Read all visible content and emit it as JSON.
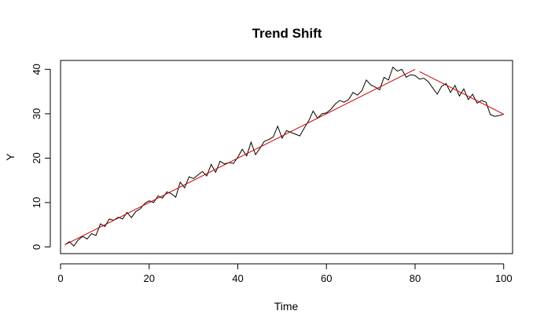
{
  "chart_data": {
    "type": "line",
    "title": "Trend Shift",
    "xlabel": "Time",
    "ylabel": "Y",
    "xlim": [
      0,
      102
    ],
    "ylim": [
      -1.5,
      42
    ],
    "xticks": [
      0,
      20,
      40,
      60,
      80,
      100
    ],
    "yticks": [
      0,
      10,
      20,
      30,
      40
    ],
    "grid": false,
    "series": [
      {
        "color": "#000000",
        "x": [
          1,
          2,
          3,
          4,
          5,
          6,
          7,
          8,
          9,
          10,
          11,
          12,
          13,
          14,
          15,
          16,
          17,
          18,
          19,
          20,
          21,
          22,
          23,
          24,
          25,
          26,
          27,
          28,
          29,
          30,
          31,
          32,
          33,
          34,
          35,
          36,
          37,
          38,
          39,
          40,
          41,
          42,
          43,
          44,
          45,
          46,
          47,
          48,
          49,
          50,
          51,
          52,
          53,
          54,
          55,
          56,
          57,
          58,
          59,
          60,
          61,
          62,
          63,
          64,
          65,
          66,
          67,
          68,
          69,
          70,
          71,
          72,
          73,
          74,
          75,
          76,
          77,
          78,
          79,
          80,
          81,
          82,
          83,
          84,
          85,
          86,
          87,
          88,
          89,
          90,
          91,
          92,
          93,
          94,
          95,
          96,
          97,
          98,
          99,
          100
        ],
        "values": [
          0.5,
          1.2,
          0.2,
          1.6,
          2.4,
          1.8,
          3.0,
          2.6,
          5.2,
          4.6,
          6.3,
          6.0,
          6.7,
          6.3,
          7.8,
          6.6,
          8.0,
          8.6,
          9.8,
          10.4,
          10.0,
          11.5,
          11.0,
          12.4,
          12.0,
          11.2,
          14.6,
          13.3,
          15.8,
          15.4,
          16.2,
          17.0,
          16.0,
          18.6,
          16.8,
          19.3,
          18.7,
          19.0,
          18.8,
          20.2,
          22.0,
          20.5,
          23.6,
          20.8,
          22.2,
          23.8,
          24.2,
          24.8,
          27.2,
          24.5,
          26.2,
          25.8,
          25.4,
          25.0,
          26.8,
          28.4,
          30.6,
          29.0,
          30.0,
          30.2,
          31.0,
          32.2,
          33.0,
          32.6,
          33.2,
          34.8,
          34.2,
          35.2,
          37.6,
          36.5,
          36.0,
          35.4,
          38.2,
          37.6,
          40.5,
          39.6,
          40.0,
          38.2,
          38.8,
          38.6,
          37.8,
          38.0,
          37.2,
          35.8,
          34.4,
          36.2,
          36.8,
          34.8,
          36.4,
          34.0,
          35.6,
          33.2,
          34.4,
          32.4,
          33.0,
          32.6,
          29.8,
          29.4,
          29.6,
          29.9
        ]
      },
      {
        "color": "#cc0000",
        "segments": [
          {
            "x": [
              1,
              80
            ],
            "values": [
              0.5,
              40.0
            ]
          },
          {
            "x": [
              81,
              100
            ],
            "values": [
              39.5,
              29.9
            ]
          }
        ]
      }
    ]
  }
}
